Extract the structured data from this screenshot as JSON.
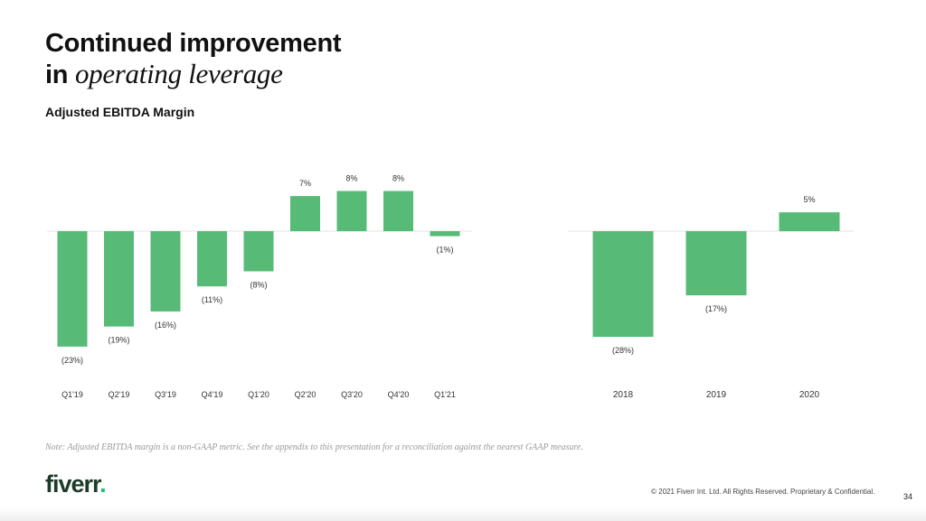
{
  "slide": {
    "title_line1": "Continued improvement",
    "title_line2_prefix": "in",
    "title_line2_italic": "operating leverage",
    "subtitle": "Adjusted EBITDA Margin",
    "note": "Note: Adjusted EBITDA margin is a non-GAAP metric. See the appendix to this presentation for a reconciliation against the nearest GAAP measure.",
    "logo_text": "fiverr",
    "logo_dot": ".",
    "copyright": "© 2021 Fiverr Int. Ltd. All Rights Reserved. Proprietary & Confidential.",
    "page_number": "34",
    "colors": {
      "bar": "#57bb77",
      "axis": "#e3e3e3",
      "logo_dark": "#1d3b2a",
      "logo_accent": "#1dbf73"
    }
  },
  "chart_data": [
    {
      "type": "bar",
      "categories": [
        "Q1'19",
        "Q2'19",
        "Q3'19",
        "Q4'19",
        "Q1'20",
        "Q2'20",
        "Q3'20",
        "Q4'20",
        "Q1'21"
      ],
      "values": [
        -23,
        -19,
        -16,
        -11,
        -8,
        7,
        8,
        8,
        -1
      ],
      "data_labels": [
        "(23%)",
        "(19%)",
        "(16%)",
        "(11%)",
        "(8%)",
        "7%",
        "8%",
        "8%",
        "(1%)"
      ],
      "title": "",
      "xlabel": "",
      "ylabel": "",
      "ylim": [
        -25,
        10
      ],
      "grid": false,
      "legend": "none"
    },
    {
      "type": "bar",
      "categories": [
        "2018",
        "2019",
        "2020"
      ],
      "values": [
        -28,
        -17,
        5
      ],
      "data_labels": [
        "(28%)",
        "(17%)",
        "5%"
      ],
      "title": "",
      "xlabel": "",
      "ylabel": "",
      "ylim": [
        -30,
        10
      ],
      "grid": false,
      "legend": "none"
    }
  ]
}
